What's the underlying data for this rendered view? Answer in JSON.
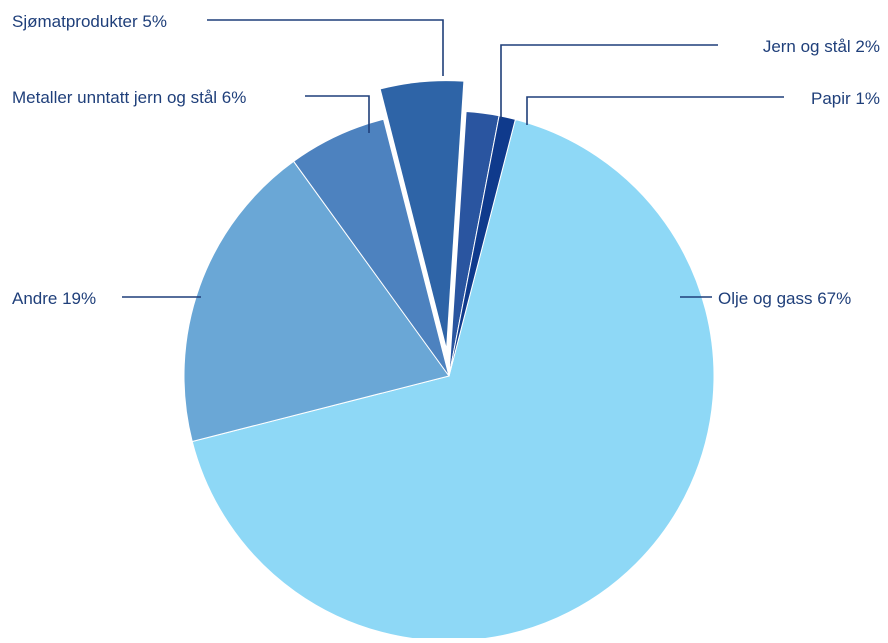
{
  "chart_data": {
    "type": "pie",
    "title": "",
    "slices": [
      {
        "label": "Olje og gass 67%",
        "value": 67,
        "color": "#8ed8f6",
        "exploded": false
      },
      {
        "label": "Andre 19%",
        "value": 19,
        "color": "#6aa7d6",
        "exploded": false
      },
      {
        "label": "Metaller unntatt jern og stål 6%",
        "value": 6,
        "color": "#4d82bf",
        "exploded": false
      },
      {
        "label": "Sjømatprodukter 5%",
        "value": 5,
        "color": "#2e64a7",
        "exploded": true
      },
      {
        "label": "Jern og stål 2%",
        "value": 2,
        "color": "#2a55a0",
        "exploded": false
      },
      {
        "label": "Papir 1%",
        "value": 1,
        "color": "#0f3a8c",
        "exploded": false
      }
    ],
    "leader_color": "#1f3f7a"
  }
}
